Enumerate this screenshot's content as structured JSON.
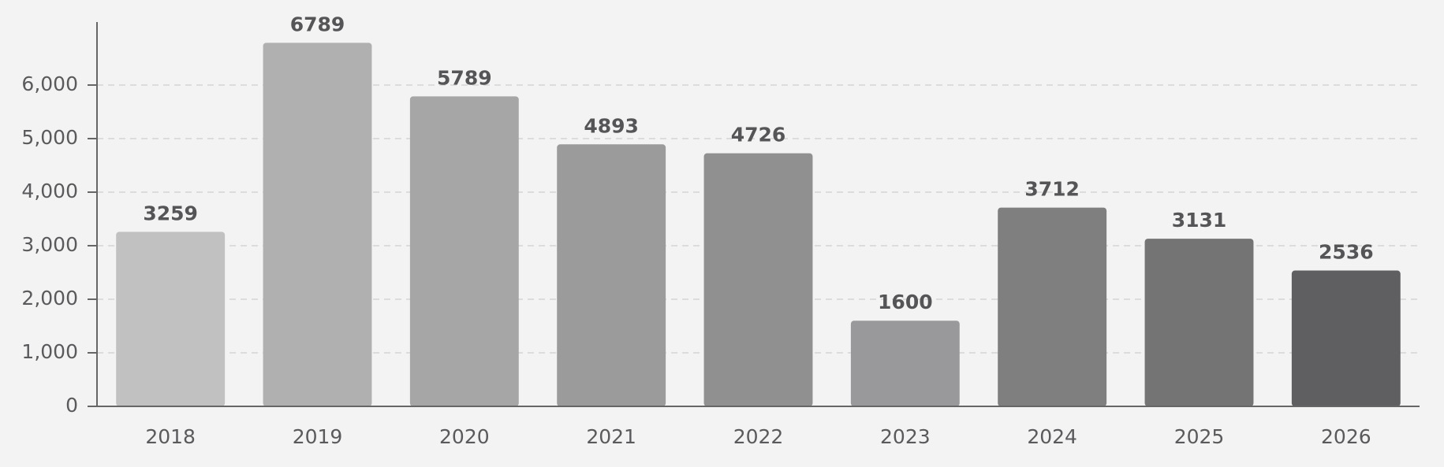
{
  "chart_data": {
    "type": "bar",
    "categories": [
      "2018",
      "2019",
      "2020",
      "2021",
      "2022",
      "2023",
      "2024",
      "2025",
      "2026"
    ],
    "values": [
      3259,
      6789,
      5789,
      4893,
      4726,
      1600,
      3712,
      3131,
      2536
    ],
    "colors": [
      "#c1c1c2",
      "#b0b0b1",
      "#a6a6a7",
      "#9b9b9c",
      "#909091",
      "#99999b",
      "#7f7f80",
      "#747475",
      "#5f5f62"
    ],
    "ylim": [
      0,
      7000
    ],
    "yticks": [
      0,
      {
        "value": 1000,
        "label": "1,000"
      },
      {
        "value": 2000,
        "label": "2,000"
      },
      {
        "value": 3000,
        "label": "3,000"
      },
      {
        "value": 4000,
        "label": "4,000"
      },
      {
        "value": 5000,
        "label": "5,000"
      },
      {
        "value": 6000,
        "label": "6,000"
      }
    ],
    "grid": true
  }
}
